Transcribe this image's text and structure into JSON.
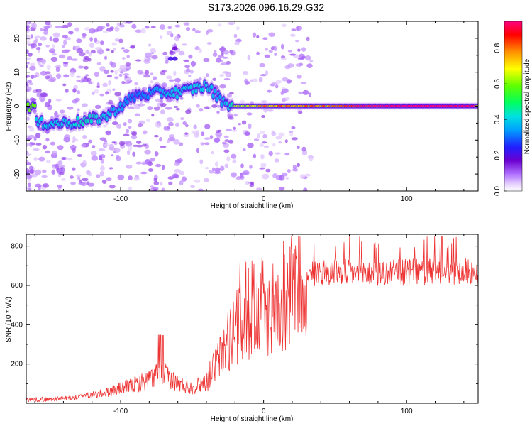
{
  "title": "S173.2026.096.16.29.G32",
  "colors": {
    "snr_line": "#ee3333",
    "colorbar": [
      "#ffffff",
      "#e6d2ff",
      "#c9a6ff",
      "#8a2be2",
      "#6a00d0",
      "#2020ff",
      "#00c8ff",
      "#00ff80",
      "#40ff00",
      "#ffff00",
      "#ff8000",
      "#ff0000",
      "#ff0080"
    ]
  },
  "chart_data": [
    {
      "type": "heatmap",
      "title": "S173.2026.096.16.29.G32",
      "xlabel": "Height of straight line (km)",
      "ylabel": "Frequency (Hz)",
      "xlim": [
        -166,
        150
      ],
      "ylim": [
        -25,
        25
      ],
      "xticks": [
        "-100",
        "0",
        "100"
      ],
      "yticks": [
        "20",
        "10",
        "0",
        "-10",
        "-20"
      ],
      "colorbar": {
        "label": "Normalized spectral amplitude",
        "range": [
          0,
          0.95
        ],
        "ticks": [
          "0.0",
          "0.2",
          "0.4",
          "0.6",
          "0.8"
        ]
      },
      "ridge": [
        {
          "x": -160,
          "y": -5,
          "amp": 0.3
        },
        {
          "x": -140,
          "y": -5,
          "amp": 0.3
        },
        {
          "x": -125,
          "y": -4.5,
          "amp": 0.35
        },
        {
          "x": -110,
          "y": -3,
          "amp": 0.3
        },
        {
          "x": -100,
          "y": 0,
          "amp": 0.25
        },
        {
          "x": -90,
          "y": 3,
          "amp": 0.2
        },
        {
          "x": -75,
          "y": 4,
          "amp": 0.25
        },
        {
          "x": -60,
          "y": 4,
          "amp": 0.3
        },
        {
          "x": -40,
          "y": 6,
          "amp": 0.3
        },
        {
          "x": -30,
          "y": 2,
          "amp": 0.25
        },
        {
          "x": -22,
          "y": 0,
          "amp": 0.35
        },
        {
          "x": 0,
          "y": 0,
          "amp": 0.5
        },
        {
          "x": 50,
          "y": 0,
          "amp": 0.55
        },
        {
          "x": 100,
          "y": 0,
          "amp": 0.9
        },
        {
          "x": 148,
          "y": 0,
          "amp": 0.8
        }
      ]
    },
    {
      "type": "line",
      "xlabel": "Height of straight line (km)",
      "ylabel": "SNR (10 * v/v)",
      "xlim": [
        -166,
        150
      ],
      "ylim": [
        0,
        860
      ],
      "xticks": [
        "-100",
        "0",
        "100"
      ],
      "yticks": [
        "800",
        "600",
        "400",
        "200"
      ],
      "series": [
        {
          "name": "SNR",
          "x": [
            -166,
            -150,
            -140,
            -130,
            -125,
            -120,
            -110,
            -100,
            -90,
            -80,
            -75,
            -70,
            -65,
            -60,
            -50,
            -45,
            -40,
            -35,
            -30,
            -25,
            -20,
            -15,
            -10,
            -5,
            0,
            5,
            10,
            15,
            20,
            25,
            30,
            35,
            40,
            50,
            60,
            80,
            100,
            120,
            140,
            150
          ],
          "values": [
            20,
            20,
            25,
            30,
            45,
            40,
            55,
            75,
            95,
            120,
            150,
            145,
            130,
            100,
            80,
            95,
            110,
            180,
            240,
            310,
            380,
            400,
            420,
            430,
            450,
            470,
            500,
            520,
            560,
            600,
            640,
            660,
            670,
            670,
            665,
            660,
            665,
            670,
            670,
            670
          ]
        }
      ]
    }
  ]
}
